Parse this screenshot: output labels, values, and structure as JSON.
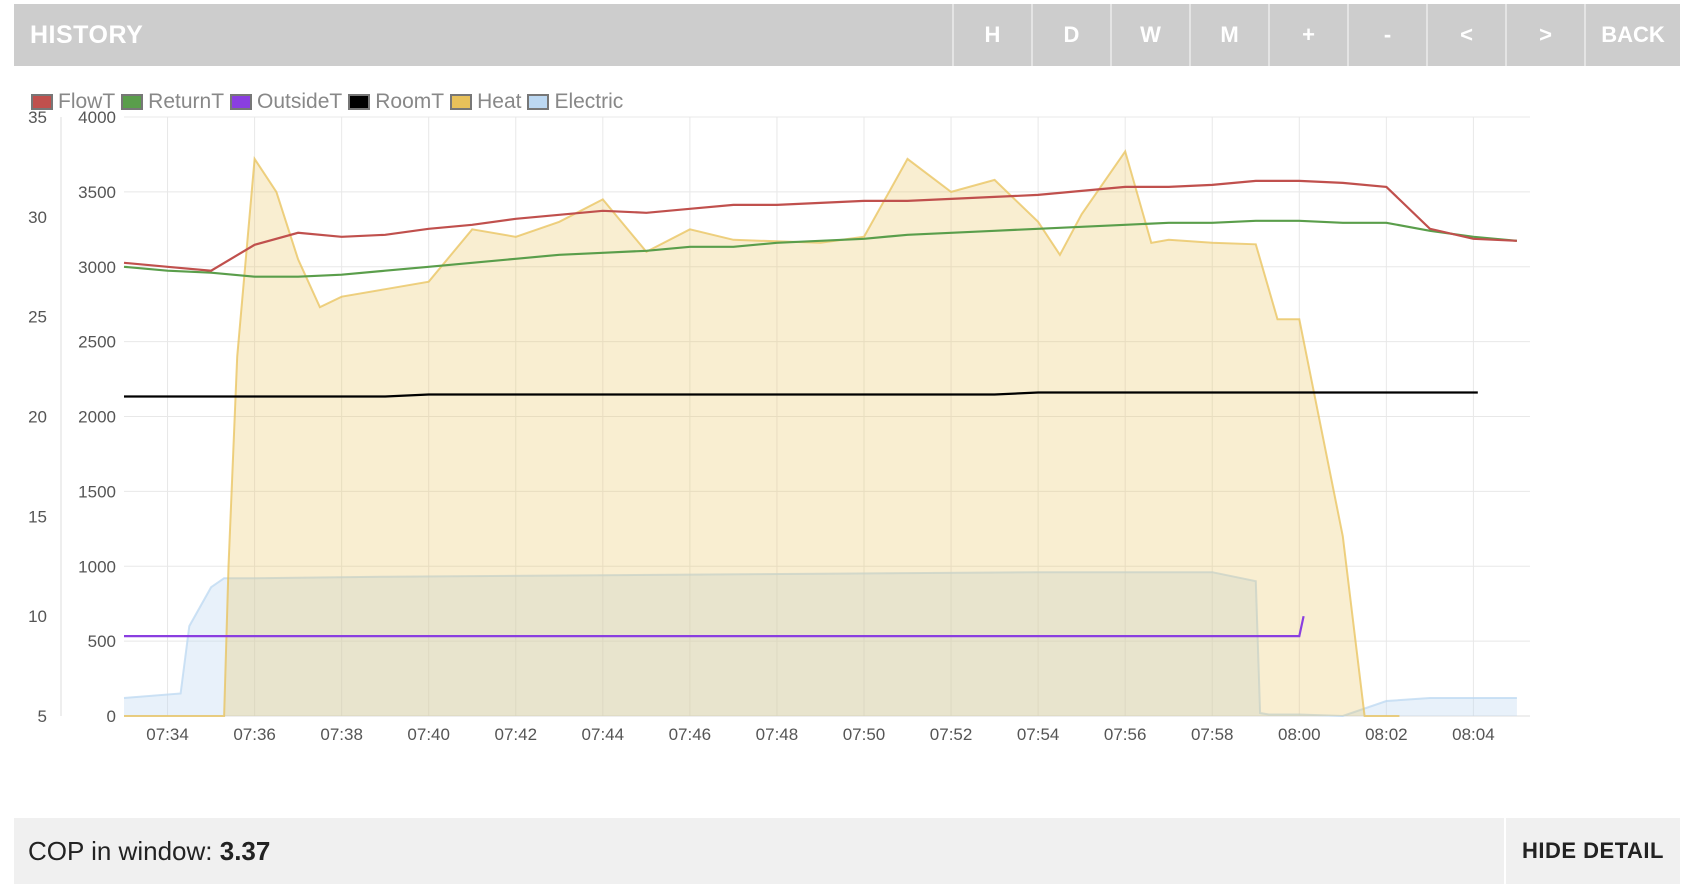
{
  "header": {
    "title": "HISTORY",
    "buttons": [
      "H",
      "D",
      "W",
      "M",
      "+",
      "-",
      "<",
      ">",
      "BACK"
    ]
  },
  "footer": {
    "cop_label": "COP in window:",
    "cop_value": "3.37",
    "hide_label": "HIDE DETAIL"
  },
  "colors": {
    "header_bg": "#cdcdcd",
    "flow": "#c0504d",
    "return": "#5a9e4b",
    "outside": "#8a3ee0",
    "room": "#000000",
    "heat": "#e8c15a",
    "electric": "#bcd8f2"
  },
  "chart_data": {
    "type": "line",
    "x_ticks": [
      "07:34",
      "07:36",
      "07:38",
      "07:40",
      "07:42",
      "07:44",
      "07:46",
      "07:48",
      "07:50",
      "07:52",
      "07:54",
      "07:56",
      "07:58",
      "08:00",
      "08:02",
      "08:04"
    ],
    "x_unit": "minutes since 07:34",
    "xlim": [
      -1,
      31.3
    ],
    "y_left": {
      "ticks": [
        5,
        10,
        15,
        20,
        25,
        30,
        35
      ],
      "range": [
        5,
        35
      ]
    },
    "y_right": {
      "ticks": [
        0,
        500,
        1000,
        1500,
        2000,
        2500,
        3000,
        3500,
        4000
      ],
      "range": [
        0,
        4000
      ]
    },
    "grid": true,
    "legend_position": "top-left",
    "series": [
      {
        "name": "FlowT",
        "axis": "left",
        "type": "line",
        "color_key": "flow",
        "x": [
          -1,
          0,
          1,
          2,
          3,
          4,
          5,
          6,
          7,
          8,
          9,
          10,
          11,
          12,
          13,
          14,
          15,
          16,
          17,
          18,
          19,
          20,
          21,
          22,
          23,
          24,
          25,
          26,
          27,
          28,
          29,
          30,
          31
        ],
        "y": [
          27.7,
          27.5,
          27.3,
          28.6,
          29.2,
          29.0,
          29.1,
          29.4,
          29.6,
          29.9,
          30.1,
          30.3,
          30.2,
          30.4,
          30.6,
          30.6,
          30.7,
          30.8,
          30.8,
          30.9,
          31.0,
          31.1,
          31.3,
          31.5,
          31.5,
          31.6,
          31.8,
          31.8,
          31.7,
          31.5,
          29.4,
          28.9,
          28.8
        ]
      },
      {
        "name": "ReturnT",
        "axis": "left",
        "type": "line",
        "color_key": "return",
        "x": [
          -1,
          0,
          1,
          2,
          3,
          4,
          5,
          6,
          7,
          8,
          9,
          10,
          11,
          12,
          13,
          14,
          15,
          16,
          17,
          18,
          19,
          20,
          21,
          22,
          23,
          24,
          25,
          26,
          27,
          28,
          29,
          30,
          31
        ],
        "y": [
          27.5,
          27.3,
          27.2,
          27.0,
          27.0,
          27.1,
          27.3,
          27.5,
          27.7,
          27.9,
          28.1,
          28.2,
          28.3,
          28.5,
          28.5,
          28.7,
          28.8,
          28.9,
          29.1,
          29.2,
          29.3,
          29.4,
          29.5,
          29.6,
          29.7,
          29.7,
          29.8,
          29.8,
          29.7,
          29.7,
          29.3,
          29.0,
          28.8
        ]
      },
      {
        "name": "OutsideT",
        "axis": "left",
        "type": "line",
        "color_key": "outside",
        "x": [
          -1,
          26,
          26.1
        ],
        "y": [
          9.0,
          9.0,
          10.0
        ]
      },
      {
        "name": "RoomT",
        "axis": "left",
        "type": "line",
        "color_key": "room",
        "x": [
          -1,
          5,
          6,
          19,
          20,
          30.1
        ],
        "y": [
          21.0,
          21.0,
          21.1,
          21.1,
          21.2,
          21.2
        ]
      },
      {
        "name": "Heat",
        "axis": "right",
        "type": "area",
        "color_key": "heat",
        "x": [
          -1,
          1.3,
          1.4,
          1.6,
          2,
          2.5,
          3,
          3.5,
          4,
          5,
          6,
          7,
          8,
          9,
          10,
          11,
          12,
          13,
          14,
          15,
          16,
          17,
          18,
          19,
          20,
          20.5,
          21,
          22,
          22.6,
          23,
          24,
          25,
          25.5,
          26,
          27,
          27.5,
          28.3
        ],
        "y": [
          0,
          0,
          1000,
          2400,
          3720,
          3500,
          3050,
          2730,
          2800,
          2850,
          2900,
          3250,
          3200,
          3300,
          3450,
          3100,
          3250,
          3180,
          3170,
          3160,
          3200,
          3720,
          3500,
          3580,
          3300,
          3080,
          3350,
          3770,
          3160,
          3180,
          3160,
          3150,
          2650,
          2650,
          1200,
          0,
          0
        ]
      },
      {
        "name": "Electric",
        "axis": "right",
        "type": "area",
        "color_key": "electric",
        "x": [
          -1,
          0.3,
          0.5,
          1,
          1.3,
          2,
          5,
          10,
          15,
          20,
          24,
          25,
          25.1,
          25.3,
          26,
          27,
          28,
          29,
          31
        ],
        "y": [
          120,
          150,
          600,
          860,
          920,
          920,
          930,
          940,
          950,
          960,
          960,
          900,
          20,
          10,
          10,
          0,
          100,
          120,
          120
        ]
      }
    ]
  }
}
